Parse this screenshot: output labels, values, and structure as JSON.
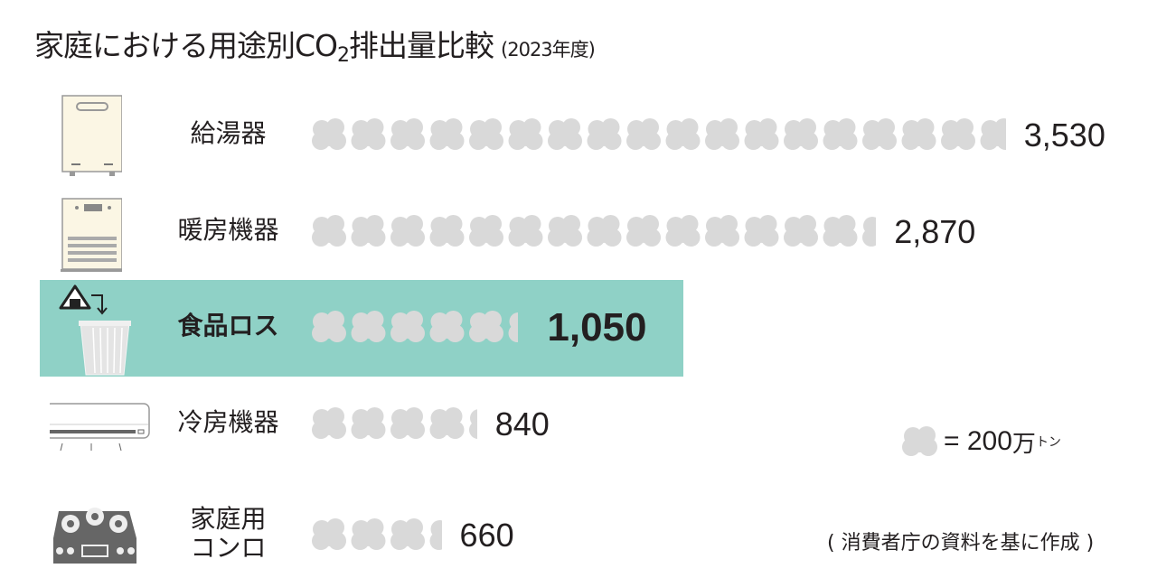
{
  "chart_data": {
    "type": "bar",
    "title": "家庭における用途別CO",
    "title_sub": "2",
    "title_rest": "排出量比較",
    "subtitle": "(2023年度)",
    "categories": [
      "給湯器",
      "暖房機器",
      "食品ロス",
      "冷房機器",
      "家庭用コンロ"
    ],
    "category_lines": [
      [
        "給湯器"
      ],
      [
        "暖房機器"
      ],
      [
        "食品ロス"
      ],
      [
        "冷房機器"
      ],
      [
        "家庭用",
        "コンロ"
      ]
    ],
    "values": [
      3530,
      2870,
      1050,
      840,
      660
    ],
    "value_labels": [
      "3,530",
      "2,870",
      "1,050",
      "840",
      "660"
    ],
    "highlighted": "食品ロス",
    "highlight_color": "#8fd1c6",
    "mark": "cloud-pictogram",
    "mark_color": "#d9d9d9",
    "unit_per_mark": 200,
    "legend": {
      "equals": "= 200",
      "unit": "万",
      "ton": "トン"
    },
    "icons": [
      "water-heater-icon",
      "heater-icon",
      "food-waste-icon",
      "air-conditioner-icon",
      "gas-stove-icon"
    ],
    "source": "( 消費者庁の資料を基に作成 )"
  }
}
